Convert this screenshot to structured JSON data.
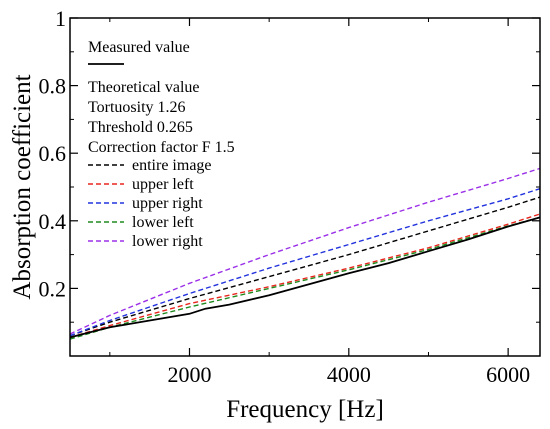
{
  "chart_data": {
    "type": "line",
    "title": "",
    "xlabel": "Frequency [Hz]",
    "ylabel": "Absorption coefficient",
    "xlim": [
      500,
      6400
    ],
    "ylim": [
      0,
      1
    ],
    "xticks": [
      2000,
      4000,
      6000
    ],
    "yticks": [
      0.2,
      0.4,
      0.6,
      0.8,
      1
    ],
    "ytick_labels": [
      "0.2",
      "0.4",
      "0.6",
      "0.8",
      "1"
    ],
    "legend_position": "top-left",
    "legend": {
      "measured_heading": "Measured value",
      "theoretical_heading": "Theoretical value",
      "params": [
        "Tortuosity 1.26",
        "Threshold 0.265",
        "Correction factor  F 1.5"
      ]
    },
    "series": [
      {
        "name": "Measured value",
        "style": "solid",
        "color": "#000000",
        "x": [
          500,
          1000,
          1500,
          2000,
          2200,
          2500,
          3000,
          3500,
          4000,
          4500,
          5000,
          5500,
          6000,
          6400
        ],
        "y": [
          0.055,
          0.085,
          0.105,
          0.125,
          0.14,
          0.152,
          0.18,
          0.212,
          0.245,
          0.275,
          0.31,
          0.345,
          0.383,
          0.41
        ]
      },
      {
        "name": "entire image",
        "style": "dashed",
        "color": "#000000",
        "x": [
          500,
          1000,
          2000,
          3000,
          4000,
          5000,
          6000,
          6400
        ],
        "y": [
          0.06,
          0.1,
          0.17,
          0.235,
          0.3,
          0.37,
          0.44,
          0.47
        ]
      },
      {
        "name": "upper left",
        "style": "dashed",
        "color": "#e8261e",
        "x": [
          500,
          1000,
          2000,
          3000,
          4000,
          5000,
          6000,
          6400
        ],
        "y": [
          0.055,
          0.09,
          0.155,
          0.205,
          0.26,
          0.32,
          0.39,
          0.42
        ]
      },
      {
        "name": "upper right",
        "style": "dashed",
        "color": "#2233dd",
        "x": [
          500,
          1000,
          2000,
          3000,
          4000,
          5000,
          6000,
          6400
        ],
        "y": [
          0.06,
          0.105,
          0.185,
          0.26,
          0.33,
          0.4,
          0.465,
          0.495
        ]
      },
      {
        "name": "lower left",
        "style": "dashed",
        "color": "#1e8a1e",
        "x": [
          500,
          1000,
          2000,
          3000,
          4000,
          5000,
          6000,
          6400
        ],
        "y": [
          0.05,
          0.085,
          0.145,
          0.2,
          0.255,
          0.315,
          0.385,
          0.41
        ]
      },
      {
        "name": "lower right",
        "style": "dashed",
        "color": "#9b30e8",
        "x": [
          500,
          1000,
          2000,
          3000,
          4000,
          5000,
          6000,
          6400
        ],
        "y": [
          0.065,
          0.12,
          0.215,
          0.3,
          0.38,
          0.455,
          0.525,
          0.555
        ]
      }
    ]
  }
}
